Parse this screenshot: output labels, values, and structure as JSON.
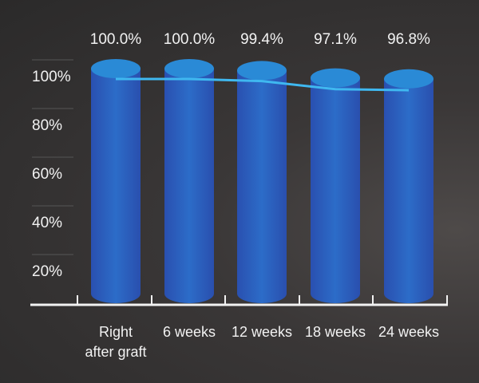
{
  "chart_data": {
    "type": "bar",
    "title": "",
    "xlabel": "",
    "ylabel": "",
    "categories": [
      [
        "Right",
        "after graft"
      ],
      [
        "6 weeks"
      ],
      [
        "12 weeks"
      ],
      [
        "18 weeks"
      ],
      [
        "24 weeks"
      ]
    ],
    "values": [
      100.0,
      100.0,
      99.4,
      97.1,
      96.8
    ],
    "value_labels": [
      "100.0%",
      "100.0%",
      "99.4%",
      "97.1%",
      "96.8%"
    ],
    "y_ticks": [
      "20%",
      "40%",
      "60%",
      "80%",
      "100%"
    ],
    "y_tick_values": [
      20,
      40,
      60,
      80,
      100
    ],
    "ylim": [
      0,
      100
    ],
    "grid": false,
    "line_series": {
      "values": [
        100.0,
        100.0,
        99.4,
        97.1,
        96.8
      ]
    },
    "colors": {
      "bar": "#2b5fc4",
      "bar_top": "#2a8ad6",
      "line": "#3fb8f0",
      "axis": "#f2f2f2"
    }
  }
}
